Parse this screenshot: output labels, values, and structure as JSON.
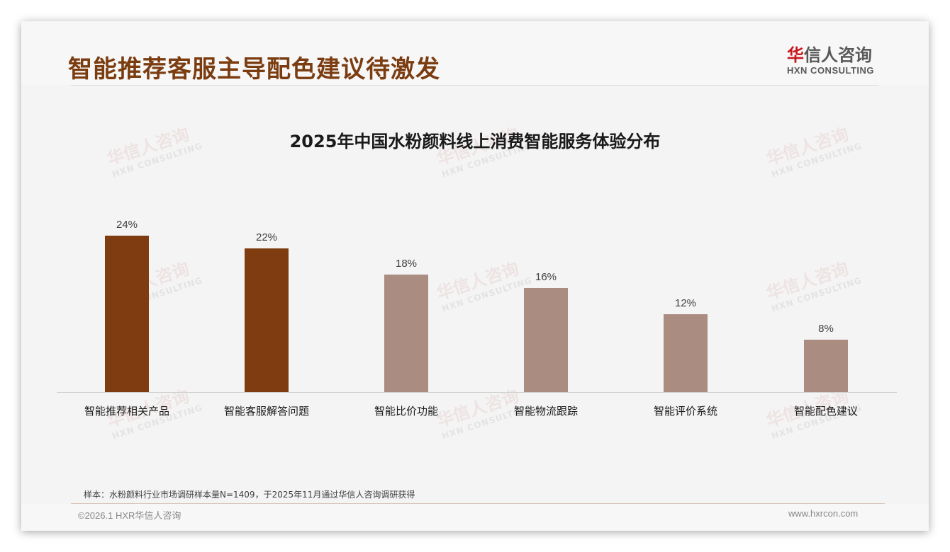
{
  "page": {
    "title": "智能推荐客服主导配色建议待激发",
    "logo": {
      "cn_red": "华",
      "cn_rest": "信人咨询",
      "en": "HXN CONSULTING"
    },
    "watermark": {
      "cn": "华信人咨询",
      "en": "HXN CONSULTING"
    },
    "note": "样本：水粉颜料行业市场调研样本量N=1409，于2025年11月通过华信人咨询调研获得",
    "copyright": "©2026.1 HXR华信人咨询",
    "website": "www.hxrcon.com"
  },
  "colors": {
    "title": "#7b3c10",
    "bar_highlight": "#7f3c10",
    "bar_normal": "#ab8c81",
    "logo_red": "#c8161d"
  },
  "chart_data": {
    "type": "bar",
    "title": "2025年中国水粉颜料线上消费智能服务体验分布",
    "categories": [
      "智能推荐相关产品",
      "智能客服解答问题",
      "智能比价功能",
      "智能物流跟踪",
      "智能评价系统",
      "智能配色建议"
    ],
    "values": [
      24,
      22,
      18,
      16,
      12,
      8
    ],
    "value_labels": [
      "24%",
      "22%",
      "18%",
      "16%",
      "12%",
      "8%"
    ],
    "highlighted": [
      true,
      true,
      false,
      false,
      false,
      false
    ],
    "xlabel": "",
    "ylabel": "",
    "ylim": [
      0,
      26
    ],
    "grid": false,
    "legend": "none",
    "unit": "%"
  }
}
